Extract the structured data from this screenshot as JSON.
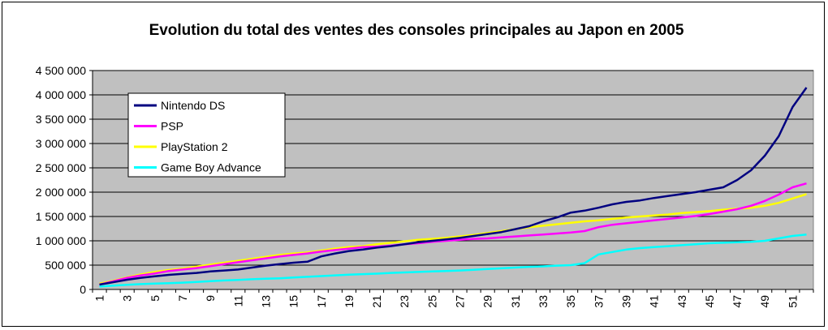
{
  "chart_data": {
    "type": "line",
    "title": "Evolution du total des ventes des consoles principales au Japon en 2005",
    "xlabel": "",
    "ylabel": "",
    "x": [
      1,
      2,
      3,
      4,
      5,
      6,
      7,
      8,
      9,
      10,
      11,
      12,
      13,
      14,
      15,
      16,
      17,
      18,
      19,
      20,
      21,
      22,
      23,
      24,
      25,
      26,
      27,
      28,
      29,
      30,
      31,
      32,
      33,
      34,
      35,
      36,
      37,
      38,
      39,
      40,
      41,
      42,
      43,
      44,
      45,
      46,
      47,
      48,
      49,
      50,
      51,
      52
    ],
    "xtick_labels": [
      "1",
      "3",
      "5",
      "7",
      "9",
      "11",
      "13",
      "15",
      "17",
      "19",
      "21",
      "23",
      "25",
      "27",
      "29",
      "31",
      "33",
      "35",
      "37",
      "39",
      "41",
      "43",
      "45",
      "47",
      "49",
      "51"
    ],
    "ylim": [
      0,
      4500000
    ],
    "yticks": [
      0,
      500000,
      1000000,
      1500000,
      2000000,
      2500000,
      3000000,
      3500000,
      4000000,
      4500000
    ],
    "ytick_labels": [
      "0",
      "500 000",
      "1 000 000",
      "1 500 000",
      "2 000 000",
      "2 500 000",
      "3 000 000",
      "3 500 000",
      "4 000 000",
      "4 500 000"
    ],
    "plot_background": "#c0c0c0",
    "grid": "horizontal",
    "legend_position": "top-left",
    "series": [
      {
        "name": "Nintendo DS",
        "color": "#000080",
        "values": [
          100000,
          150000,
          200000,
          240000,
          270000,
          300000,
          320000,
          340000,
          370000,
          390000,
          410000,
          450000,
          490000,
          520000,
          550000,
          570000,
          680000,
          740000,
          790000,
          820000,
          860000,
          890000,
          930000,
          970000,
          1000000,
          1030000,
          1060000,
          1100000,
          1140000,
          1180000,
          1240000,
          1300000,
          1400000,
          1480000,
          1580000,
          1620000,
          1680000,
          1750000,
          1800000,
          1830000,
          1880000,
          1920000,
          1960000,
          2000000,
          2050000,
          2100000,
          2250000,
          2450000,
          2750000,
          3150000,
          3750000,
          4150000
        ]
      },
      {
        "name": "PSP",
        "color": "#ff00ff",
        "values": [
          100000,
          170000,
          240000,
          290000,
          330000,
          380000,
          410000,
          440000,
          480000,
          520000,
          560000,
          600000,
          640000,
          680000,
          710000,
          740000,
          780000,
          810000,
          840000,
          870000,
          880000,
          900000,
          930000,
          950000,
          980000,
          1000000,
          1020000,
          1040000,
          1050000,
          1070000,
          1090000,
          1110000,
          1130000,
          1150000,
          1170000,
          1200000,
          1280000,
          1330000,
          1360000,
          1390000,
          1420000,
          1450000,
          1480000,
          1510000,
          1550000,
          1600000,
          1650000,
          1720000,
          1820000,
          1950000,
          2100000,
          2180000
        ]
      },
      {
        "name": "PlayStation 2",
        "color": "#ffff00",
        "values": [
          120000,
          180000,
          250000,
          310000,
          360000,
          400000,
          430000,
          470000,
          510000,
          550000,
          590000,
          630000,
          670000,
          710000,
          740000,
          760000,
          800000,
          840000,
          870000,
          890000,
          930000,
          960000,
          990000,
          1020000,
          1040000,
          1060000,
          1090000,
          1120000,
          1160000,
          1200000,
          1240000,
          1280000,
          1310000,
          1340000,
          1370000,
          1400000,
          1420000,
          1450000,
          1480000,
          1500000,
          1520000,
          1540000,
          1570000,
          1590000,
          1610000,
          1640000,
          1660000,
          1680000,
          1720000,
          1780000,
          1870000,
          1960000
        ]
      },
      {
        "name": "Game Boy Advance",
        "color": "#00ffff",
        "values": [
          60000,
          80000,
          95000,
          110000,
          120000,
          130000,
          140000,
          155000,
          170000,
          185000,
          195000,
          210000,
          220000,
          230000,
          245000,
          260000,
          275000,
          290000,
          305000,
          315000,
          325000,
          340000,
          350000,
          360000,
          370000,
          380000,
          390000,
          405000,
          420000,
          435000,
          450000,
          465000,
          475000,
          490000,
          500000,
          540000,
          720000,
          770000,
          820000,
          850000,
          870000,
          890000,
          910000,
          930000,
          950000,
          960000,
          970000,
          980000,
          1000000,
          1050000,
          1100000,
          1130000
        ]
      }
    ]
  }
}
